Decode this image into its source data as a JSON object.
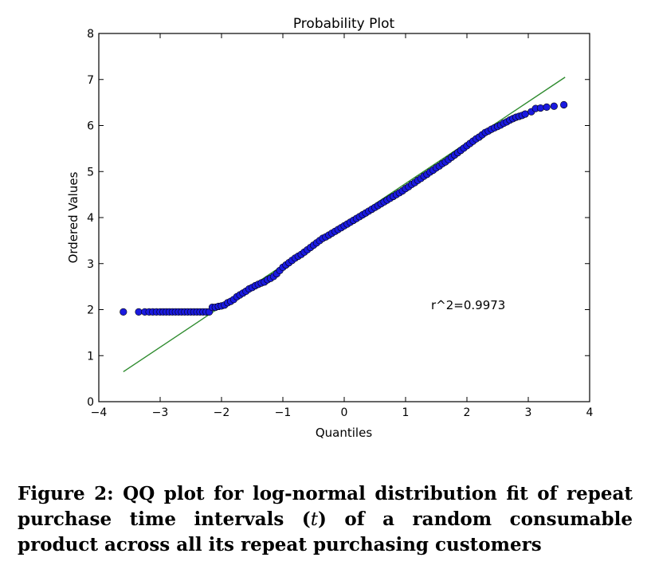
{
  "chart_data": {
    "type": "scatter",
    "title": "Probability Plot",
    "xlabel": "Quantiles",
    "ylabel": "Ordered Values",
    "xlim": [
      -4,
      4
    ],
    "ylim": [
      0,
      8
    ],
    "xticks": [
      "−4",
      "−3",
      "−2",
      "−1",
      "0",
      "1",
      "2",
      "3",
      "4"
    ],
    "yticks": [
      "0",
      "1",
      "2",
      "3",
      "4",
      "5",
      "6",
      "7",
      "8"
    ],
    "annotation": "r^2=0.9973",
    "fit_line": {
      "x": [
        -3.6,
        3.6
      ],
      "y": [
        0.65,
        7.05
      ],
      "color": "#2e8b2e"
    },
    "point_color": "#1a1adf",
    "points": [
      [
        -3.6,
        1.95
      ],
      [
        -3.35,
        1.95
      ],
      [
        -3.25,
        1.95
      ],
      [
        -3.18,
        1.95
      ],
      [
        -3.12,
        1.95
      ],
      [
        -3.06,
        1.95
      ],
      [
        -3.0,
        1.95
      ],
      [
        -2.95,
        1.95
      ],
      [
        -2.9,
        1.95
      ],
      [
        -2.85,
        1.95
      ],
      [
        -2.8,
        1.95
      ],
      [
        -2.75,
        1.95
      ],
      [
        -2.7,
        1.95
      ],
      [
        -2.65,
        1.95
      ],
      [
        -2.6,
        1.95
      ],
      [
        -2.55,
        1.95
      ],
      [
        -2.5,
        1.95
      ],
      [
        -2.45,
        1.95
      ],
      [
        -2.4,
        1.95
      ],
      [
        -2.35,
        1.95
      ],
      [
        -2.3,
        1.95
      ],
      [
        -2.25,
        1.95
      ],
      [
        -2.2,
        1.95
      ],
      [
        -2.15,
        2.05
      ],
      [
        -2.1,
        2.05
      ],
      [
        -2.05,
        2.07
      ],
      [
        -2.0,
        2.08
      ],
      [
        -1.95,
        2.1
      ],
      [
        -1.9,
        2.15
      ],
      [
        -1.85,
        2.18
      ],
      [
        -1.8,
        2.22
      ],
      [
        -1.75,
        2.28
      ],
      [
        -1.7,
        2.32
      ],
      [
        -1.65,
        2.36
      ],
      [
        -1.6,
        2.4
      ],
      [
        -1.55,
        2.45
      ],
      [
        -1.5,
        2.48
      ],
      [
        -1.45,
        2.52
      ],
      [
        -1.4,
        2.55
      ],
      [
        -1.35,
        2.58
      ],
      [
        -1.3,
        2.6
      ],
      [
        -1.25,
        2.65
      ],
      [
        -1.2,
        2.68
      ],
      [
        -1.15,
        2.72
      ],
      [
        -1.1,
        2.78
      ],
      [
        -1.05,
        2.85
      ],
      [
        -1.0,
        2.92
      ],
      [
        -0.95,
        2.97
      ],
      [
        -0.9,
        3.02
      ],
      [
        -0.85,
        3.07
      ],
      [
        -0.8,
        3.12
      ],
      [
        -0.75,
        3.16
      ],
      [
        -0.7,
        3.2
      ],
      [
        -0.65,
        3.25
      ],
      [
        -0.6,
        3.3
      ],
      [
        -0.55,
        3.35
      ],
      [
        -0.5,
        3.4
      ],
      [
        -0.45,
        3.45
      ],
      [
        -0.4,
        3.5
      ],
      [
        -0.35,
        3.55
      ],
      [
        -0.3,
        3.58
      ],
      [
        -0.25,
        3.62
      ],
      [
        -0.2,
        3.66
      ],
      [
        -0.15,
        3.7
      ],
      [
        -0.1,
        3.74
      ],
      [
        -0.05,
        3.78
      ],
      [
        0.0,
        3.82
      ],
      [
        0.05,
        3.86
      ],
      [
        0.1,
        3.9
      ],
      [
        0.15,
        3.94
      ],
      [
        0.2,
        3.98
      ],
      [
        0.25,
        4.02
      ],
      [
        0.3,
        4.06
      ],
      [
        0.35,
        4.1
      ],
      [
        0.4,
        4.14
      ],
      [
        0.45,
        4.18
      ],
      [
        0.5,
        4.22
      ],
      [
        0.55,
        4.26
      ],
      [
        0.6,
        4.3
      ],
      [
        0.65,
        4.34
      ],
      [
        0.7,
        4.38
      ],
      [
        0.75,
        4.42
      ],
      [
        0.8,
        4.46
      ],
      [
        0.85,
        4.5
      ],
      [
        0.9,
        4.54
      ],
      [
        0.95,
        4.58
      ],
      [
        1.0,
        4.63
      ],
      [
        1.05,
        4.67
      ],
      [
        1.1,
        4.72
      ],
      [
        1.15,
        4.76
      ],
      [
        1.2,
        4.81
      ],
      [
        1.25,
        4.85
      ],
      [
        1.3,
        4.9
      ],
      [
        1.35,
        4.94
      ],
      [
        1.4,
        4.99
      ],
      [
        1.45,
        5.03
      ],
      [
        1.5,
        5.08
      ],
      [
        1.55,
        5.12
      ],
      [
        1.6,
        5.17
      ],
      [
        1.65,
        5.21
      ],
      [
        1.7,
        5.26
      ],
      [
        1.75,
        5.31
      ],
      [
        1.8,
        5.36
      ],
      [
        1.85,
        5.41
      ],
      [
        1.9,
        5.46
      ],
      [
        1.95,
        5.51
      ],
      [
        2.0,
        5.56
      ],
      [
        2.05,
        5.61
      ],
      [
        2.1,
        5.66
      ],
      [
        2.15,
        5.71
      ],
      [
        2.2,
        5.75
      ],
      [
        2.25,
        5.8
      ],
      [
        2.3,
        5.85
      ],
      [
        2.35,
        5.88
      ],
      [
        2.4,
        5.92
      ],
      [
        2.45,
        5.95
      ],
      [
        2.5,
        5.98
      ],
      [
        2.55,
        6.01
      ],
      [
        2.6,
        6.05
      ],
      [
        2.65,
        6.08
      ],
      [
        2.7,
        6.12
      ],
      [
        2.75,
        6.15
      ],
      [
        2.8,
        6.18
      ],
      [
        2.85,
        6.2
      ],
      [
        2.9,
        6.22
      ],
      [
        2.95,
        6.25
      ],
      [
        3.05,
        6.3
      ],
      [
        3.12,
        6.37
      ],
      [
        3.2,
        6.38
      ],
      [
        3.3,
        6.4
      ],
      [
        3.42,
        6.42
      ],
      [
        3.58,
        6.45
      ]
    ]
  },
  "caption": {
    "before": "Figure 2: QQ plot for log-normal distribution fit of repeat purchase time intervals (",
    "math": "t",
    "after": ") of a random consumable product across all its repeat purchasing customers"
  }
}
